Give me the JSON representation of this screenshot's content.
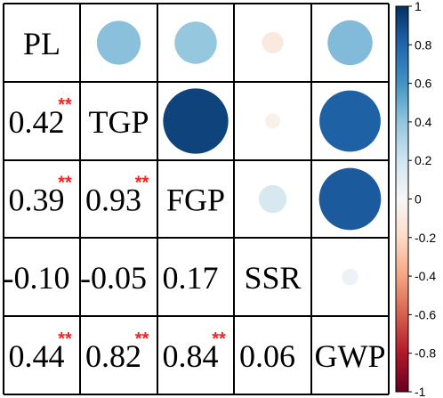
{
  "chart_data": {
    "type": "heatmap",
    "variables": [
      "PL",
      "TGP",
      "FGP",
      "SSR",
      "GWP"
    ],
    "correlations": [
      [
        1.0,
        0.42,
        0.39,
        -0.1,
        0.44
      ],
      [
        0.42,
        1.0,
        0.93,
        -0.05,
        0.82
      ],
      [
        0.39,
        0.93,
        1.0,
        0.17,
        0.84
      ],
      [
        -0.1,
        -0.05,
        0.17,
        1.0,
        0.06
      ],
      [
        0.44,
        0.82,
        0.84,
        0.06,
        1.0
      ]
    ],
    "lower_labels": [
      {
        "row": 1,
        "col": 0,
        "text": "0.42",
        "sig": "**"
      },
      {
        "row": 2,
        "col": 0,
        "text": "0.39",
        "sig": "**"
      },
      {
        "row": 2,
        "col": 1,
        "text": "0.93",
        "sig": "**"
      },
      {
        "row": 3,
        "col": 0,
        "text": "-0.10",
        "sig": ""
      },
      {
        "row": 3,
        "col": 1,
        "text": "-0.05",
        "sig": ""
      },
      {
        "row": 3,
        "col": 2,
        "text": "0.17",
        "sig": ""
      },
      {
        "row": 4,
        "col": 0,
        "text": "0.44",
        "sig": "**"
      },
      {
        "row": 4,
        "col": 1,
        "text": "0.82",
        "sig": "**"
      },
      {
        "row": 4,
        "col": 2,
        "text": "0.84",
        "sig": "**"
      },
      {
        "row": 4,
        "col": 3,
        "text": "0.06",
        "sig": ""
      }
    ],
    "upper_glyph": "circle",
    "colorbar": {
      "range": [
        -1,
        1
      ],
      "ticks": [
        "1",
        "0.8",
        "0.6",
        "0.4",
        "0.2",
        "0",
        "-0.2",
        "-0.4",
        "-0.6",
        "-0.8",
        "-1"
      ],
      "colors": [
        "#67001f",
        "#b2182b",
        "#d6604d",
        "#f4a582",
        "#fddbc7",
        "#f7f7f7",
        "#d1e5f0",
        "#92c5de",
        "#4393c3",
        "#2166ac",
        "#053061"
      ]
    },
    "sig_color": "#ff2020",
    "title": "",
    "xlabel": "",
    "ylabel": ""
  }
}
